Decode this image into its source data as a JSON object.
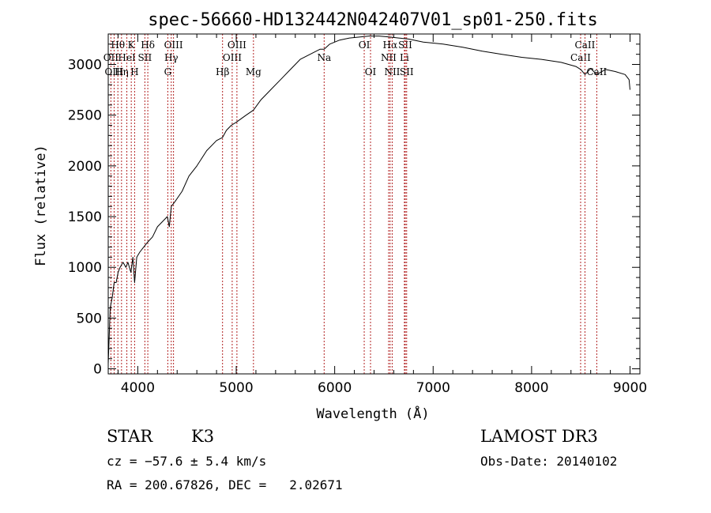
{
  "chart_data": {
    "type": "line",
    "title": "spec-56660-HD132442N042407V01_sp01-250.fits",
    "xlabel": "Wavelength (Å)",
    "ylabel": "Flux (relative)",
    "xlim": [
      3700,
      9100
    ],
    "ylim": [
      -50,
      3300
    ],
    "xticks": [
      4000,
      5000,
      6000,
      7000,
      8000,
      9000
    ],
    "yticks": [
      0,
      500,
      1000,
      1500,
      2000,
      2500,
      3000
    ],
    "grid": false,
    "series": [
      {
        "name": "flux",
        "x": [
          3700,
          3720,
          3740,
          3760,
          3780,
          3800,
          3820,
          3850,
          3880,
          3900,
          3930,
          3950,
          3968,
          3990,
          4020,
          4060,
          4102,
          4150,
          4200,
          4250,
          4300,
          4320,
          4340,
          4380,
          4450,
          4520,
          4600,
          4700,
          4800,
          4861,
          4900,
          4950,
          5000,
          5100,
          5175,
          5250,
          5350,
          5450,
          5550,
          5650,
          5750,
          5850,
          5893,
          5950,
          6050,
          6150,
          6250,
          6350,
          6450,
          6563,
          6650,
          6750,
          6900,
          7100,
          7300,
          7500,
          7700,
          7900,
          8100,
          8300,
          8450,
          8500,
          8542,
          8600,
          8662,
          8750,
          8850,
          8950,
          8990,
          9000
        ],
        "values": [
          50,
          600,
          700,
          850,
          850,
          950,
          1000,
          1050,
          1000,
          1050,
          950,
          1100,
          850,
          1100,
          1150,
          1200,
          1250,
          1300,
          1400,
          1450,
          1500,
          1400,
          1600,
          1650,
          1750,
          1900,
          2000,
          2150,
          2250,
          2280,
          2350,
          2400,
          2430,
          2500,
          2550,
          2650,
          2750,
          2850,
          2950,
          3050,
          3100,
          3150,
          3150,
          3200,
          3240,
          3260,
          3270,
          3280,
          3280,
          3270,
          3260,
          3250,
          3220,
          3200,
          3170,
          3130,
          3100,
          3070,
          3050,
          3020,
          2980,
          2950,
          2900,
          2960,
          2900,
          2950,
          2930,
          2900,
          2850,
          2750
        ]
      }
    ],
    "line_markers": [
      {
        "label": "Hθ",
        "wavelength": 3798,
        "row": 1
      },
      {
        "label": "OII",
        "wavelength": 3727,
        "row": 2
      },
      {
        "label": "OIII",
        "wavelength": 3760,
        "row": 3
      },
      {
        "label": "K",
        "wavelength": 3934,
        "row": 1
      },
      {
        "label": "HeI",
        "wavelength": 3889,
        "row": 2
      },
      {
        "label": "Hη",
        "wavelength": 3835,
        "row": 3
      },
      {
        "label": "H",
        "wavelength": 3968,
        "row": 3
      },
      {
        "label": "SII",
        "wavelength": 4072,
        "row": 2
      },
      {
        "label": "Hδ",
        "wavelength": 4102,
        "row": 1
      },
      {
        "label": "OIII",
        "wavelength": 4363,
        "row": 1
      },
      {
        "label": "Hγ",
        "wavelength": 4340,
        "row": 2
      },
      {
        "label": "G",
        "wavelength": 4305,
        "row": 3
      },
      {
        "label": "Hβ",
        "wavelength": 4861,
        "row": 3
      },
      {
        "label": "OIII",
        "wavelength": 4959,
        "row": 2
      },
      {
        "label": "OIII",
        "wavelength": 5007,
        "row": 1
      },
      {
        "label": "Mg",
        "wavelength": 5175,
        "row": 3
      },
      {
        "label": "Na",
        "wavelength": 5893,
        "row": 2
      },
      {
        "label": "OI",
        "wavelength": 6300,
        "row": 1
      },
      {
        "label": "OI",
        "wavelength": 6364,
        "row": 3
      },
      {
        "label": "NII",
        "wavelength": 6548,
        "row": 2
      },
      {
        "label": "Hα",
        "wavelength": 6563,
        "row": 1
      },
      {
        "label": "NII",
        "wavelength": 6584,
        "row": 3
      },
      {
        "label": "Li",
        "wavelength": 6708,
        "row": 2
      },
      {
        "label": "SII",
        "wavelength": 6717,
        "row": 1
      },
      {
        "label": "SII",
        "wavelength": 6731,
        "row": 3
      },
      {
        "label": "CaII",
        "wavelength": 8498,
        "row": 2
      },
      {
        "label": "CaII",
        "wavelength": 8542,
        "row": 1
      },
      {
        "label": "CaII",
        "wavelength": 8662,
        "row": 3
      }
    ]
  },
  "info": {
    "class": "STAR",
    "subclass": "K3",
    "survey": "LAMOST DR3",
    "cz": "cz = −57.6 ± 5.4 km/s",
    "obs_date": "Obs-Date: 20140102",
    "coords": "RA = 200.67826, DEC =   2.02671"
  },
  "colors": {
    "axis": "#000000",
    "spectrum": "#000000",
    "marker": "#b22222"
  }
}
